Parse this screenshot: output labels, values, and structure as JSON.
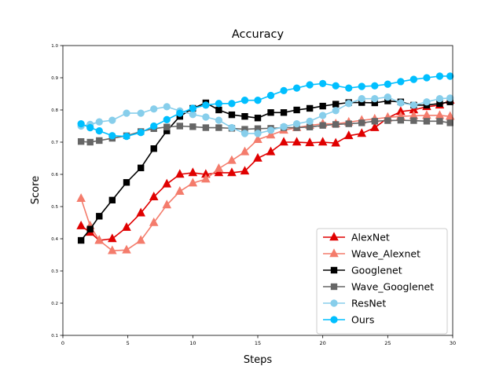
{
  "chart_data": {
    "type": "line",
    "title": "Accuracy",
    "xlabel": "Steps",
    "ylabel": "Score",
    "xlim": [
      0,
      30
    ],
    "ylim": [
      0.1,
      1.0
    ],
    "x_ticks": [
      "0",
      "5",
      "10",
      "15",
      "20",
      "25",
      "30"
    ],
    "y_ticks": [
      "0.1",
      "0.2",
      "0.3",
      "0.4",
      "0.5",
      "0.6",
      "0.7",
      "0.8",
      "0.9",
      "1.0"
    ],
    "grid": false,
    "legend_position": "lower-right",
    "x": [
      1.4,
      2.1,
      2.8,
      3.8,
      4.9,
      6.0,
      7.0,
      8.0,
      9.0,
      10.0,
      11.0,
      12.0,
      13.0,
      14.0,
      15.0,
      16.0,
      17.0,
      18.0,
      19.0,
      20.0,
      21.0,
      22.0,
      23.0,
      24.0,
      25.0,
      26.0,
      27.0,
      28.0,
      29.0,
      29.8
    ],
    "series": [
      {
        "name": "AlexNet",
        "color": "#e00000",
        "marker": "triangle",
        "values": [
          0.44,
          0.42,
          0.395,
          0.4,
          0.435,
          0.48,
          0.53,
          0.57,
          0.6,
          0.605,
          0.6,
          0.605,
          0.605,
          0.61,
          0.65,
          0.67,
          0.7,
          0.7,
          0.698,
          0.7,
          0.697,
          0.72,
          0.727,
          0.745,
          0.775,
          0.795,
          0.8,
          0.81,
          0.815,
          0.83
        ]
      },
      {
        "name": "Wave_Alexnet",
        "color": "#f47c6c",
        "marker": "triangle",
        "values": [
          0.525,
          0.44,
          0.395,
          0.363,
          0.365,
          0.395,
          0.45,
          0.505,
          0.547,
          0.573,
          0.585,
          0.618,
          0.643,
          0.67,
          0.708,
          0.722,
          0.737,
          0.745,
          0.752,
          0.757,
          0.757,
          0.762,
          0.768,
          0.772,
          0.777,
          0.78,
          0.782,
          0.783,
          0.783,
          0.78
        ]
      },
      {
        "name": "Googlenet",
        "color": "#000000",
        "marker": "square",
        "values": [
          0.395,
          0.43,
          0.47,
          0.52,
          0.575,
          0.62,
          0.68,
          0.735,
          0.78,
          0.805,
          0.822,
          0.8,
          0.785,
          0.78,
          0.775,
          0.792,
          0.792,
          0.8,
          0.805,
          0.812,
          0.818,
          0.823,
          0.823,
          0.822,
          0.828,
          0.825,
          0.815,
          0.815,
          0.82,
          0.825
        ]
      },
      {
        "name": "Wave_Googlenet",
        "color": "#666666",
        "marker": "square",
        "values": [
          0.702,
          0.7,
          0.705,
          0.712,
          0.72,
          0.733,
          0.742,
          0.747,
          0.75,
          0.748,
          0.745,
          0.745,
          0.743,
          0.74,
          0.742,
          0.743,
          0.745,
          0.745,
          0.747,
          0.752,
          0.755,
          0.757,
          0.76,
          0.765,
          0.767,
          0.768,
          0.767,
          0.765,
          0.765,
          0.76
        ]
      },
      {
        "name": "ResNet",
        "color": "#87ceeb",
        "marker": "circle",
        "values": [
          0.75,
          0.755,
          0.763,
          0.768,
          0.79,
          0.79,
          0.803,
          0.81,
          0.797,
          0.786,
          0.778,
          0.768,
          0.745,
          0.727,
          0.727,
          0.737,
          0.748,
          0.757,
          0.765,
          0.783,
          0.798,
          0.82,
          0.835,
          0.835,
          0.84,
          0.822,
          0.815,
          0.825,
          0.835,
          0.837
        ]
      },
      {
        "name": "Ours",
        "color": "#00bfff",
        "marker": "circle",
        "values": [
          0.757,
          0.745,
          0.735,
          0.72,
          0.718,
          0.73,
          0.75,
          0.77,
          0.79,
          0.805,
          0.815,
          0.82,
          0.82,
          0.83,
          0.83,
          0.845,
          0.86,
          0.868,
          0.878,
          0.882,
          0.875,
          0.868,
          0.873,
          0.875,
          0.88,
          0.888,
          0.895,
          0.9,
          0.905,
          0.905
        ]
      }
    ]
  }
}
